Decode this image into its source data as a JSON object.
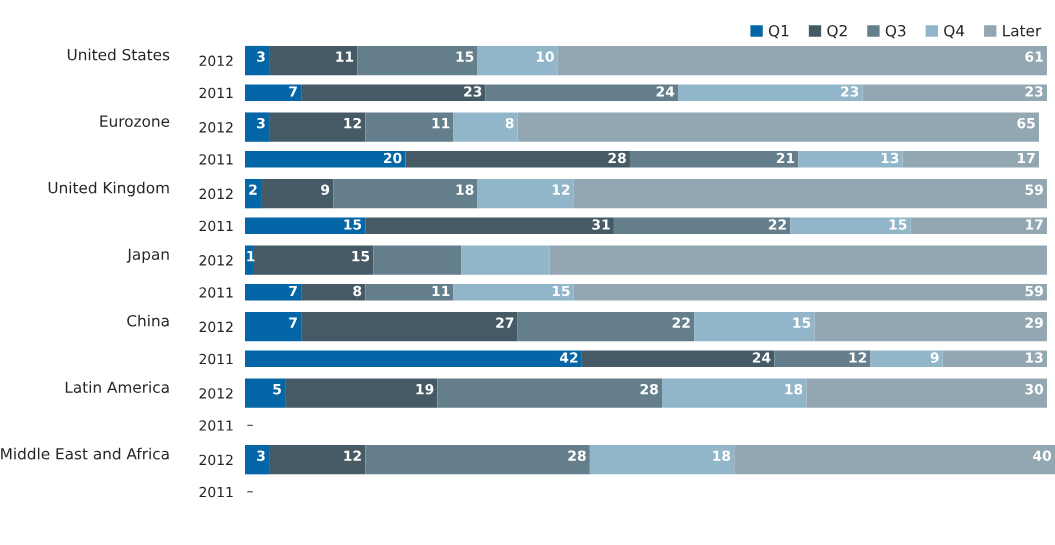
{
  "chart_data": {
    "type": "bar",
    "orientation": "horizontal",
    "stacked": true,
    "data_labels": true,
    "legend": "top right",
    "grid": false,
    "tick_labels": "y",
    "categories": [
      "2012",
      "2011",
      "2012",
      "2011",
      "2012",
      "2011",
      "2012",
      "2011",
      "2012",
      "2011",
      "2012",
      "2011",
      "2012",
      "2011"
    ],
    "annotations": [
      "United States",
      "Eurozone",
      "United Kingdom",
      "Japan",
      "China",
      "Latin America",
      "Middle East and Africa"
    ],
    "series": [
      {
        "name": "Q1",
        "color": "#0466a6",
        "values": [
          3,
          7,
          3,
          20,
          2,
          15,
          1,
          7,
          7,
          42,
          5,
          null,
          3,
          null
        ],
        "value_labels": [
          "3",
          "7",
          "3",
          "20",
          "2",
          "15",
          "1",
          "7",
          "7",
          "42",
          "5",
          "–",
          "3",
          "–"
        ]
      },
      {
        "name": "Q2",
        "color": "#465a66",
        "values": [
          11,
          23,
          12,
          28,
          9,
          31,
          15,
          8,
          27,
          24,
          19,
          null,
          12,
          null
        ],
        "value_labels": [
          "11",
          "23",
          "12",
          "28",
          "9",
          "31",
          "15",
          "8",
          "27",
          "24",
          "19",
          null,
          "12",
          null
        ]
      },
      {
        "name": "Q3",
        "color": "#647f8b",
        "values": [
          15,
          24,
          11,
          21,
          18,
          22,
          11,
          11,
          22,
          12,
          28,
          null,
          28,
          null
        ],
        "value_labels": [
          "15",
          "24",
          "11",
          "21",
          "18",
          "22",
          null,
          "11",
          "22",
          "12",
          "28",
          null,
          "28",
          null
        ]
      },
      {
        "name": "Q4",
        "color": "#91b5c9",
        "values": [
          10,
          23,
          8,
          13,
          12,
          15,
          11,
          15,
          15,
          9,
          18,
          null,
          18,
          null
        ],
        "value_labels": [
          "10",
          "23",
          "8",
          "13",
          "12",
          "15",
          null,
          "15",
          "15",
          "9",
          "18",
          null,
          "18",
          null
        ]
      },
      {
        "name": "Later",
        "color": "#93a7b2",
        "values": [
          61,
          23,
          65,
          17,
          59,
          17,
          62,
          59,
          29,
          13,
          30,
          null,
          40,
          null
        ],
        "value_labels": [
          "61",
          "23",
          "65",
          "17",
          "59",
          "17",
          null,
          "59",
          "29",
          "13",
          "30",
          null,
          "40",
          null
        ]
      }
    ]
  }
}
